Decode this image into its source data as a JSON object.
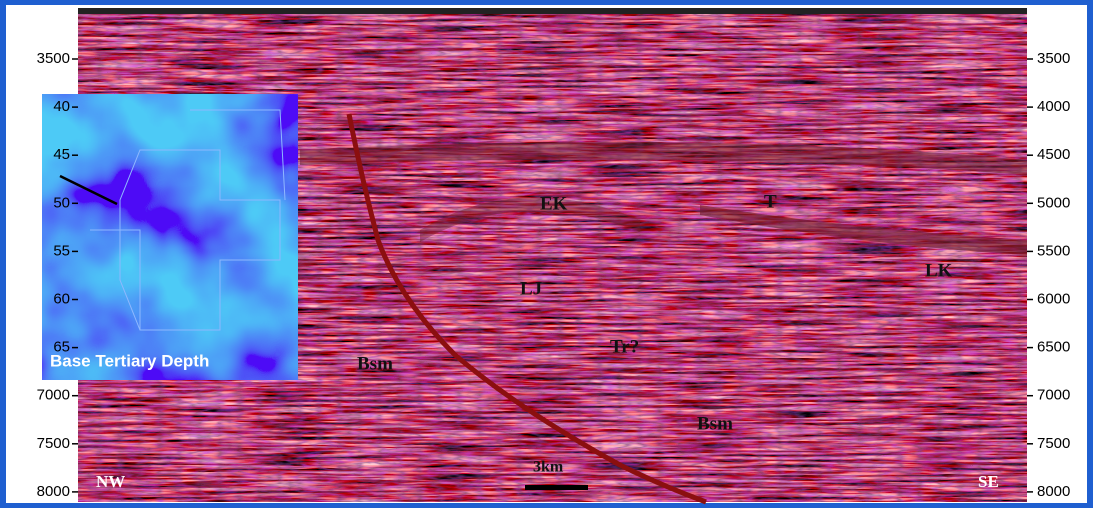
{
  "left_axis": [
    "3500",
    "40",
    "45",
    "50",
    "55",
    "60",
    "65",
    "7000",
    "7500",
    "8000"
  ],
  "right_axis": [
    "3500",
    "4000",
    "4500",
    "5000",
    "5500",
    "6000",
    "6500",
    "7000",
    "7500",
    "8000"
  ],
  "labels": {
    "ek": "EK",
    "t": "T",
    "lj": "LJ",
    "lk": "LK",
    "tr": "Tr?",
    "bsm_left": "Bsm",
    "bsm_right": "Bsm"
  },
  "directions": {
    "west": "NW",
    "east": "SE"
  },
  "scale_bar": "3km",
  "inset": {
    "title": "Base Tertiary Depth"
  }
}
